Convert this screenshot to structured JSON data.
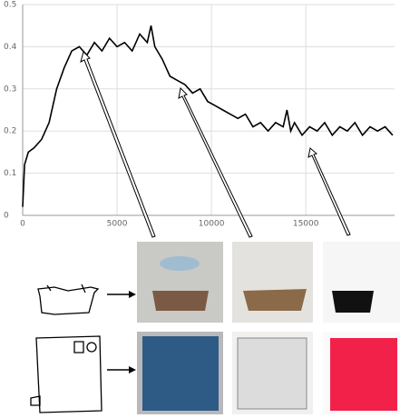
{
  "chart_data": {
    "type": "line",
    "x": [
      0,
      100,
      300,
      600,
      1000,
      1400,
      1800,
      2200,
      2600,
      3000,
      3400,
      3800,
      4200,
      4600,
      5000,
      5400,
      5800,
      6200,
      6600,
      6800,
      7000,
      7400,
      7800,
      8200,
      8600,
      9000,
      9400,
      9800,
      10200,
      10600,
      11000,
      11400,
      11800,
      12200,
      12600,
      13000,
      13400,
      13800,
      14000,
      14200,
      14400,
      14800,
      15200,
      15600,
      16000,
      16400,
      16800,
      17200,
      17600,
      18000,
      18400,
      18800,
      19200,
      19600
    ],
    "values": [
      0.02,
      0.12,
      0.15,
      0.16,
      0.18,
      0.22,
      0.3,
      0.35,
      0.39,
      0.4,
      0.38,
      0.41,
      0.39,
      0.42,
      0.4,
      0.41,
      0.39,
      0.43,
      0.41,
      0.45,
      0.4,
      0.37,
      0.33,
      0.32,
      0.31,
      0.29,
      0.3,
      0.27,
      0.26,
      0.25,
      0.24,
      0.23,
      0.24,
      0.21,
      0.22,
      0.2,
      0.22,
      0.21,
      0.25,
      0.2,
      0.22,
      0.19,
      0.21,
      0.2,
      0.22,
      0.19,
      0.21,
      0.2,
      0.22,
      0.19,
      0.21,
      0.2,
      0.21,
      0.19
    ],
    "color": "#000000",
    "xlim": [
      0,
      19700
    ],
    "xticks": [
      0,
      5000,
      10000,
      15000
    ],
    "ylim": [
      0,
      0.5
    ],
    "yticks": [
      0,
      0.1,
      0.2,
      0.3,
      0.4,
      0.5
    ],
    "grid": true
  }
}
